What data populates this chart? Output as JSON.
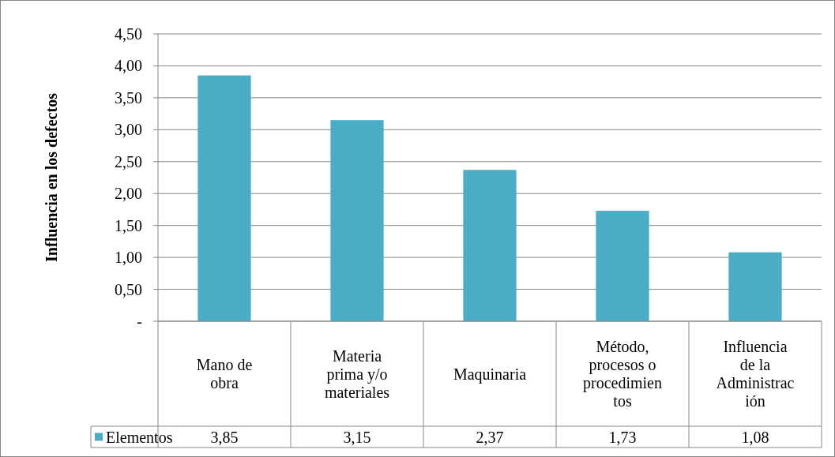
{
  "chart_data": {
    "type": "bar",
    "ylabel": "Influencia en los defectos",
    "categories": [
      "Mano de obra",
      "Materia prima y/o materiales",
      "Maquinaria",
      "Método, procesos o procedimientos",
      "Influencia de la Administración"
    ],
    "series": [
      {
        "name": "Elementos",
        "color": "#4bacc6",
        "values": [
          3.85,
          3.15,
          2.37,
          1.73,
          1.08
        ],
        "value_labels": [
          "3,85",
          "3,15",
          "2,37",
          "1,73",
          "1,08"
        ]
      }
    ],
    "ylim": [
      0,
      4.5
    ],
    "yticks": [
      {
        "value": 0,
        "label": "-"
      },
      {
        "value": 0.5,
        "label": "0,50"
      },
      {
        "value": 1,
        "label": "1,00"
      },
      {
        "value": 1.5,
        "label": "1,50"
      },
      {
        "value": 2,
        "label": "2,00"
      },
      {
        "value": 2.5,
        "label": "2,50"
      },
      {
        "value": 3,
        "label": "3,00"
      },
      {
        "value": 3.5,
        "label": "3,50"
      },
      {
        "value": 4,
        "label": "4,00"
      },
      {
        "value": 4.5,
        "label": "4,50"
      }
    ],
    "grid": "y",
    "legend": "bottom left"
  }
}
